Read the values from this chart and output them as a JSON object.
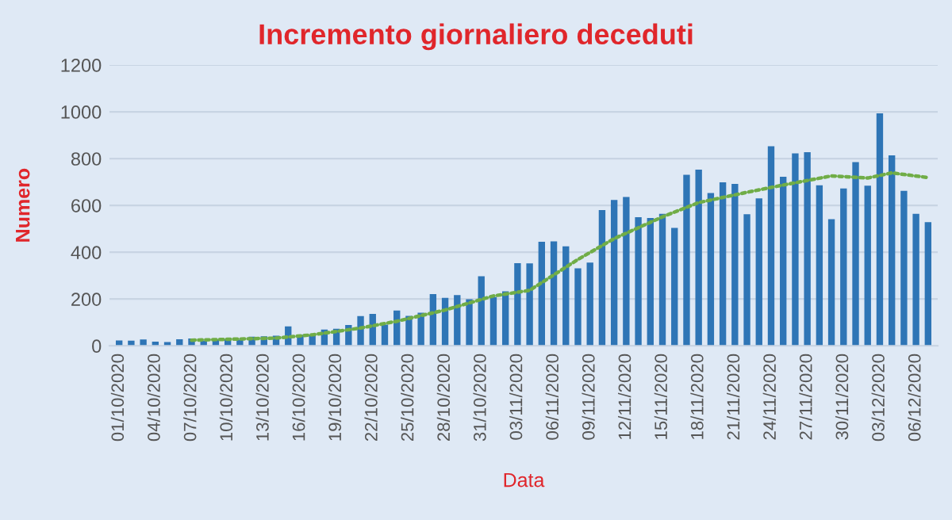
{
  "chart_data": {
    "type": "bar",
    "title": "Incremento giornaliero deceduti",
    "xlabel": "Data",
    "ylabel": "Numero",
    "categories": [
      "01/10/2020",
      null,
      null,
      "04/10/2020",
      null,
      null,
      "07/10/2020",
      null,
      null,
      "10/10/2020",
      null,
      null,
      "13/10/2020",
      null,
      null,
      "16/10/2020",
      null,
      null,
      "19/10/2020",
      null,
      null,
      "22/10/2020",
      null,
      null,
      "25/10/2020",
      null,
      null,
      "28/10/2020",
      null,
      null,
      "31/10/2020",
      null,
      null,
      "03/11/2020",
      null,
      null,
      "06/11/2020",
      null,
      null,
      "09/11/2020",
      null,
      null,
      "12/11/2020",
      null,
      null,
      "15/11/2020",
      null,
      null,
      "18/11/2020",
      null,
      null,
      "21/11/2020",
      null,
      null,
      "24/11/2020",
      null,
      null,
      "27/11/2020",
      null,
      null,
      "30/11/2020",
      null,
      null,
      "03/12/2020",
      null,
      null,
      "06/12/2020",
      null
    ],
    "series": [
      {
        "color": "#2e75b6",
        "values": [
          23,
          22,
          27,
          18,
          16,
          28,
          31,
          22,
          28,
          29,
          26,
          39,
          41,
          43,
          83,
          47,
          47,
          69,
          73,
          89,
          127,
          136,
          91,
          151,
          128,
          141,
          221,
          205,
          217,
          199,
          297,
          208,
          233,
          353,
          352,
          445,
          446,
          425,
          331,
          356,
          580,
          623,
          636,
          550,
          546,
          564,
          504,
          731,
          753,
          653,
          699,
          692,
          562,
          630,
          853,
          722,
          822,
          827,
          686,
          541,
          672,
          785,
          684,
          993,
          814,
          662,
          564,
          528
        ]
      },
      {
        "type": "line",
        "color": "#70ad47",
        "line_style": "dotted",
        "values": [
          null,
          null,
          null,
          null,
          null,
          null,
          24,
          null,
          null,
          null,
          null,
          null,
          null,
          33,
          null,
          null,
          47,
          null,
          null,
          null,
          76,
          null,
          null,
          105,
          null,
          null,
          null,
          153,
          null,
          null,
          null,
          213,
          null,
          null,
          237,
          null,
          null,
          null,
          369,
          null,
          null,
          458,
          null,
          null,
          null,
          551,
          null,
          null,
          612,
          null,
          null,
          null,
          656,
          null,
          null,
          687,
          null,
          null,
          null,
          726,
          null,
          null,
          717,
          null,
          739,
          null,
          null,
          719
        ]
      }
    ],
    "ylim": [
      0,
      1200
    ],
    "yticks": [
      0,
      200,
      400,
      600,
      800,
      1000,
      1200
    ],
    "grid": "y",
    "legend": false
  }
}
